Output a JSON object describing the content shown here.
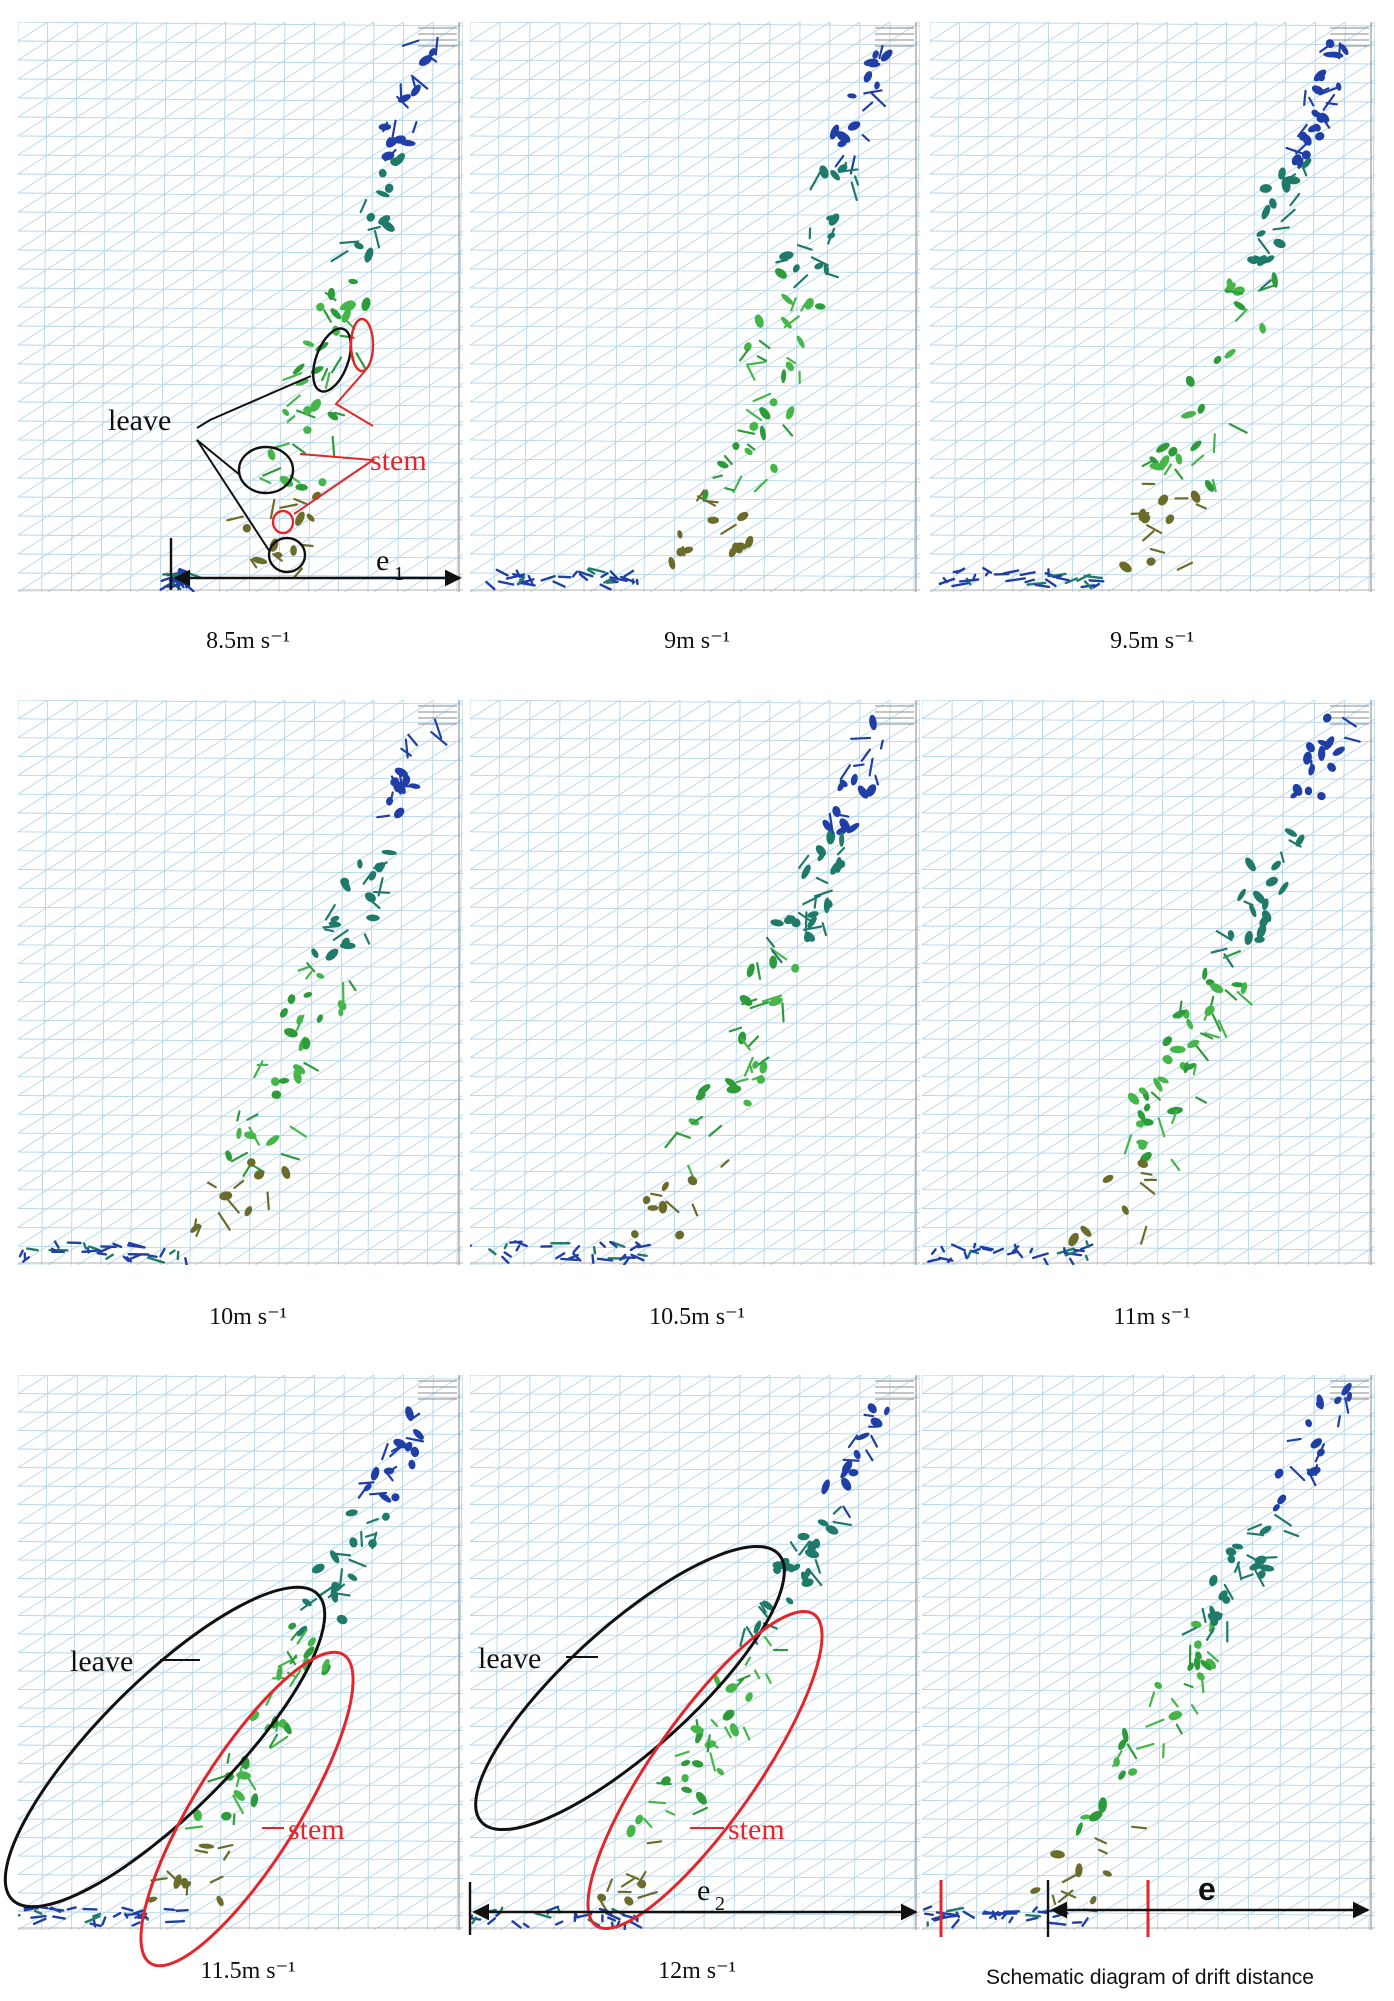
{
  "figure": {
    "panels": [
      {
        "caption": "8.5m s⁻¹",
        "annotations": {
          "leave": "leave",
          "stem": "stem",
          "distance": "e",
          "distance_sub": "1"
        }
      },
      {
        "caption": "9m s⁻¹"
      },
      {
        "caption": "9.5m s⁻¹"
      },
      {
        "caption": "10m s⁻¹"
      },
      {
        "caption": "10.5m s⁻¹"
      },
      {
        "caption": "11m s⁻¹"
      },
      {
        "caption": "11.5m s⁻¹",
        "annotations": {
          "leave": "leave",
          "stem": "stem"
        }
      },
      {
        "caption": "12m s⁻¹",
        "annotations": {
          "leave": "leave",
          "stem": "stem",
          "distance": "e",
          "distance_sub": "2"
        }
      },
      {
        "caption": "Schematic diagram of drift distance",
        "annotations": {
          "distance": "e"
        }
      }
    ],
    "colors": {
      "mesh": "#a9cfe6",
      "leaf_green": "#2e9b3a",
      "stem_green": "#46b54a",
      "teal": "#1f7a6a",
      "blue": "#1f3fa6",
      "olive": "#6b6b2a",
      "annotation_black": "#111111",
      "annotation_red": "#e3262b"
    }
  }
}
